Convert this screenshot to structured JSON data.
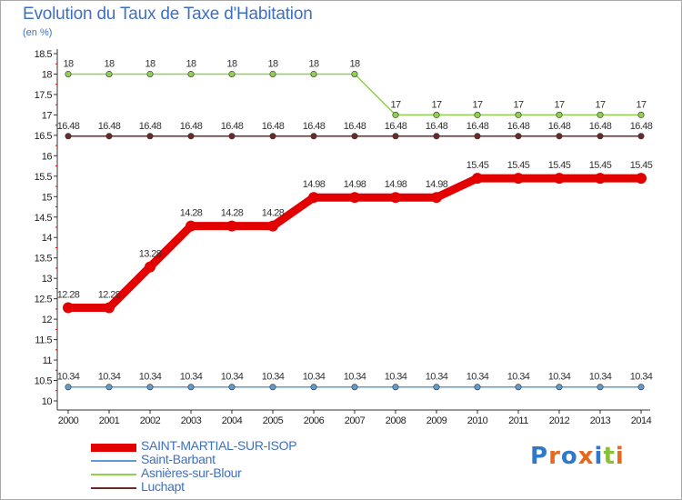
{
  "header": {
    "title": "Evolution du Taux de Taxe d'Habitation",
    "subtitle": "(en %)"
  },
  "logo": {
    "text": "Proxiti",
    "letters": [
      {
        "ch": "P",
        "color": "#2f79c8"
      },
      {
        "ch": "r",
        "color": "#e6691d"
      },
      {
        "ch": "o",
        "color": "#2f79c8"
      },
      {
        "ch": "x",
        "color": "#e6691d"
      },
      {
        "ch": "i",
        "color": "#2f79c8"
      },
      {
        "ch": "t",
        "color": "#8bbf3a"
      },
      {
        "ch": "i",
        "color": "#e6691d"
      }
    ]
  },
  "chart_data": {
    "type": "line",
    "title": "Evolution du Taux de Taxe d'Habitation",
    "ylabel": "(en %)",
    "xlabel": "",
    "x": [
      "2000",
      "2001",
      "2002",
      "2003",
      "2004",
      "2005",
      "2006",
      "2007",
      "2008",
      "2009",
      "2010",
      "2011",
      "2012",
      "2013",
      "2014"
    ],
    "ylim": [
      10,
      18.5
    ],
    "yticks": [
      "10",
      "10.5",
      "11",
      "11.5",
      "12",
      "12.5",
      "13",
      "13.5",
      "14",
      "14.5",
      "15",
      "15.5",
      "16",
      "16.5",
      "17",
      "17.5",
      "18",
      "18.5"
    ],
    "grid": false,
    "legend_position": "bottom-left",
    "series": [
      {
        "name": "SAINT-MARTIAL-SUR-ISOP",
        "color": "#e30000",
        "labels": [
          "12.28",
          "12.28",
          "13.28",
          "14.28",
          "14.28",
          "14.28",
          "14.98",
          "14.98",
          "14.98",
          "14.98",
          "15.45",
          "15.45",
          "15.45",
          "15.45",
          "15.45"
        ],
        "values": [
          12.28,
          12.28,
          13.28,
          14.28,
          14.28,
          14.28,
          14.98,
          14.98,
          14.98,
          14.98,
          15.45,
          15.45,
          15.45,
          15.45,
          15.45
        ]
      },
      {
        "name": "Saint-Barbant",
        "color": "#5d9bd1",
        "labels": [
          "10.34",
          "10.34",
          "10.34",
          "10.34",
          "10.34",
          "10.34",
          "10.34",
          "10.34",
          "10.34",
          "10.34",
          "10.34",
          "10.34",
          "10.34",
          "10.34",
          "10.34"
        ],
        "values": [
          10.34,
          10.34,
          10.34,
          10.34,
          10.34,
          10.34,
          10.34,
          10.34,
          10.34,
          10.34,
          10.34,
          10.34,
          10.34,
          10.34,
          10.34
        ]
      },
      {
        "name": "Asnières-sur-Blour",
        "color": "#8fd14f",
        "labels": [
          "18",
          "18",
          "18",
          "18",
          "18",
          "18",
          "18",
          "18",
          "17",
          "17",
          "17",
          "17",
          "17",
          "17",
          "17"
        ],
        "values": [
          18,
          18,
          18,
          18,
          18,
          18,
          18,
          18,
          17,
          17,
          17,
          17,
          17,
          17,
          17
        ]
      },
      {
        "name": "Luchapt",
        "color": "#6b2a2a",
        "labels": [
          "16.48",
          "16.48",
          "16.48",
          "16.48",
          "16.48",
          "16.48",
          "16.48",
          "16.48",
          "16.48",
          "16.48",
          "16.48",
          "16.48",
          "16.48",
          "16.48",
          "16.48"
        ],
        "values": [
          16.48,
          16.48,
          16.48,
          16.48,
          16.48,
          16.48,
          16.48,
          16.48,
          16.48,
          16.48,
          16.48,
          16.48,
          16.48,
          16.48,
          16.48
        ]
      }
    ]
  }
}
